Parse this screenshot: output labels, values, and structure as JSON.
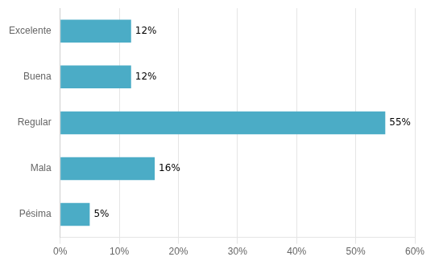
{
  "chart_data": {
    "type": "bar",
    "orientation": "horizontal",
    "categories": [
      "Excelente",
      "Buena",
      "Regular",
      "Mala",
      "Pésima"
    ],
    "values": [
      12,
      12,
      55,
      16,
      5
    ],
    "value_labels": [
      "12%",
      "12%",
      "55%",
      "16%",
      "5%"
    ],
    "data_labels": true,
    "color": "#4bacc6",
    "xlim": [
      0,
      60
    ],
    "xticks": [
      {
        "value": 0,
        "label": "0%"
      },
      {
        "value": 10,
        "label": "10%"
      },
      {
        "value": 20,
        "label": "20%"
      },
      {
        "value": 30,
        "label": "30%"
      },
      {
        "value": 40,
        "label": "40%"
      },
      {
        "value": 50,
        "label": "50%"
      },
      {
        "value": 60,
        "label": "60%"
      }
    ],
    "grid": true
  }
}
